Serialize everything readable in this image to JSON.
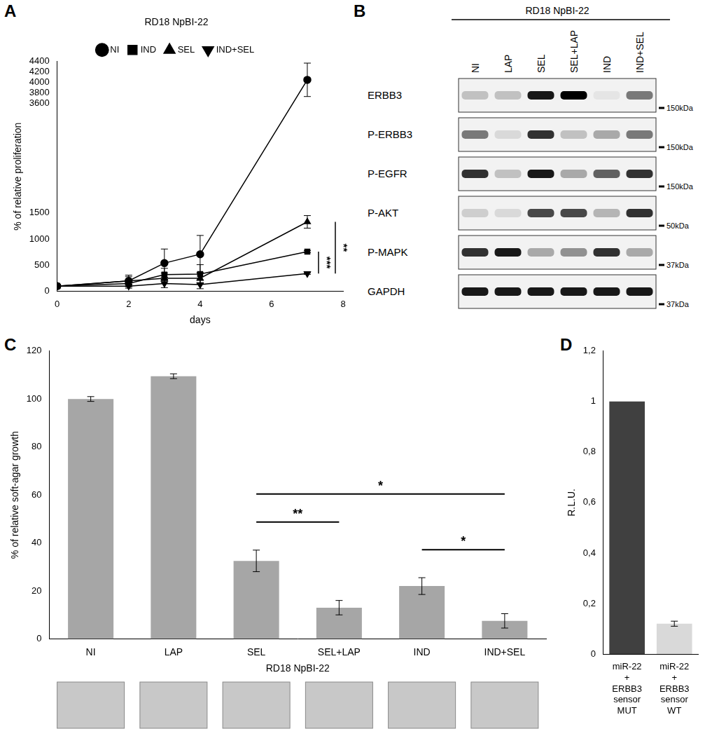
{
  "chart_data": [
    {
      "panel": "A",
      "type": "line",
      "title": "RD18 NpBI-22",
      "x_label": "days",
      "y_label": "% of relative proliferation",
      "x": [
        0,
        2,
        3,
        4,
        7
      ],
      "series": [
        {
          "name": "NI",
          "color": "#000000",
          "marker": "circle",
          "values": [
            100,
            200,
            540,
            710,
            4050
          ],
          "errors": [
            0,
            110,
            270,
            360,
            320
          ]
        },
        {
          "name": "IND",
          "color": "#000000",
          "marker": "square",
          "values": [
            100,
            150,
            320,
            330,
            760
          ],
          "errors": [
            0,
            60,
            120,
            180,
            20
          ]
        },
        {
          "name": "SEL",
          "color": "#000000",
          "marker": "triangle",
          "values": [
            100,
            200,
            250,
            250,
            1330
          ],
          "errors": [
            0,
            80,
            100,
            110,
            120
          ]
        },
        {
          "name": "IND+SEL",
          "color": "#000000",
          "marker": "triangle_down",
          "values": [
            100,
            100,
            150,
            130,
            340
          ],
          "errors": [
            0,
            40,
            80,
            80,
            15
          ]
        }
      ],
      "xlim": [
        0,
        8
      ],
      "xticks": [
        0,
        2,
        4,
        6,
        8
      ],
      "ylim": [
        0,
        4400
      ],
      "yticks": [
        0,
        500,
        1000,
        1500,
        3600,
        3800,
        4000,
        4200,
        4400
      ],
      "legend": "top",
      "grid": false,
      "annotations": [
        {
          "text": "***",
          "from": "IND",
          "to": "IND+SEL"
        },
        {
          "text": "**",
          "from": "SEL",
          "to": "IND+SEL"
        }
      ]
    },
    {
      "panel": "C",
      "type": "bar",
      "x_label": "RD18 NpBI-22",
      "y_label": "% of relative soft-agar growth",
      "categories": [
        "NI",
        "LAP",
        "SEL",
        "SEL+LAP",
        "IND",
        "IND+SEL"
      ],
      "values": [
        100,
        109.5,
        32.5,
        13,
        22,
        7.5
      ],
      "errors": [
        1,
        1,
        4.5,
        3,
        3.5,
        3
      ],
      "color": "#a6a6a6",
      "ylim": [
        0,
        120
      ],
      "yticks": [
        0,
        20,
        40,
        60,
        80,
        100,
        120
      ],
      "grid": false,
      "annotations": [
        {
          "text": "*",
          "from": "SEL",
          "to": "IND+SEL"
        },
        {
          "text": "**",
          "from": "SEL",
          "to": "SEL+LAP"
        },
        {
          "text": "*",
          "from": "IND",
          "to": "IND+SEL"
        }
      ]
    },
    {
      "panel": "D",
      "type": "bar",
      "y_label": "R.L.U.",
      "categories": [
        "miR-22 + ERBB3 sensor MUT",
        "miR-22 + ERBB3 sensor WT"
      ],
      "values": [
        1,
        0.12
      ],
      "errors": [
        0,
        0.01
      ],
      "colors": [
        "#404040",
        "#d9d9d9"
      ],
      "ylim": [
        0,
        1.2
      ],
      "yticks": [
        0,
        {
          "value": 0.2,
          "label": "0,2"
        },
        {
          "value": 0.4,
          "label": "0,4"
        },
        {
          "value": 0.6,
          "label": "0,6"
        },
        {
          "value": 0.8,
          "label": "0,8"
        },
        1,
        {
          "value": 1.2,
          "label": "1,2"
        }
      ],
      "grid": false
    }
  ],
  "blot": {
    "panel": "B",
    "title": "RD18 NpBI-22",
    "lanes": [
      "NI",
      "LAP",
      "SEL",
      "SEL+LAP",
      "IND",
      "IND+SEL"
    ],
    "rows": [
      {
        "label": "ERBB3",
        "size": "150kDa",
        "intensity": [
          0.2,
          0.2,
          0.9,
          1,
          0.05,
          0.5
        ]
      },
      {
        "label": "P-ERBB3",
        "size": "150kDa",
        "intensity": [
          0.5,
          0.1,
          0.8,
          0.2,
          0.3,
          0.5
        ]
      },
      {
        "label": "P-EGFR",
        "size": "150kDa",
        "intensity": [
          0.8,
          0.2,
          0.9,
          0.3,
          0.6,
          0.8
        ]
      },
      {
        "label": "P-AKT",
        "size": "50kDa",
        "intensity": [
          0.15,
          0.1,
          0.7,
          0.7,
          0.25,
          0.8
        ]
      },
      {
        "label": "P-MAPK",
        "size": "37kDa",
        "intensity": [
          0.8,
          0.9,
          0.3,
          0.4,
          0.8,
          0.3
        ]
      },
      {
        "label": "GAPDH",
        "size": "37kDa",
        "intensity": [
          0.9,
          0.9,
          0.9,
          0.9,
          0.9,
          0.9
        ]
      }
    ]
  }
}
